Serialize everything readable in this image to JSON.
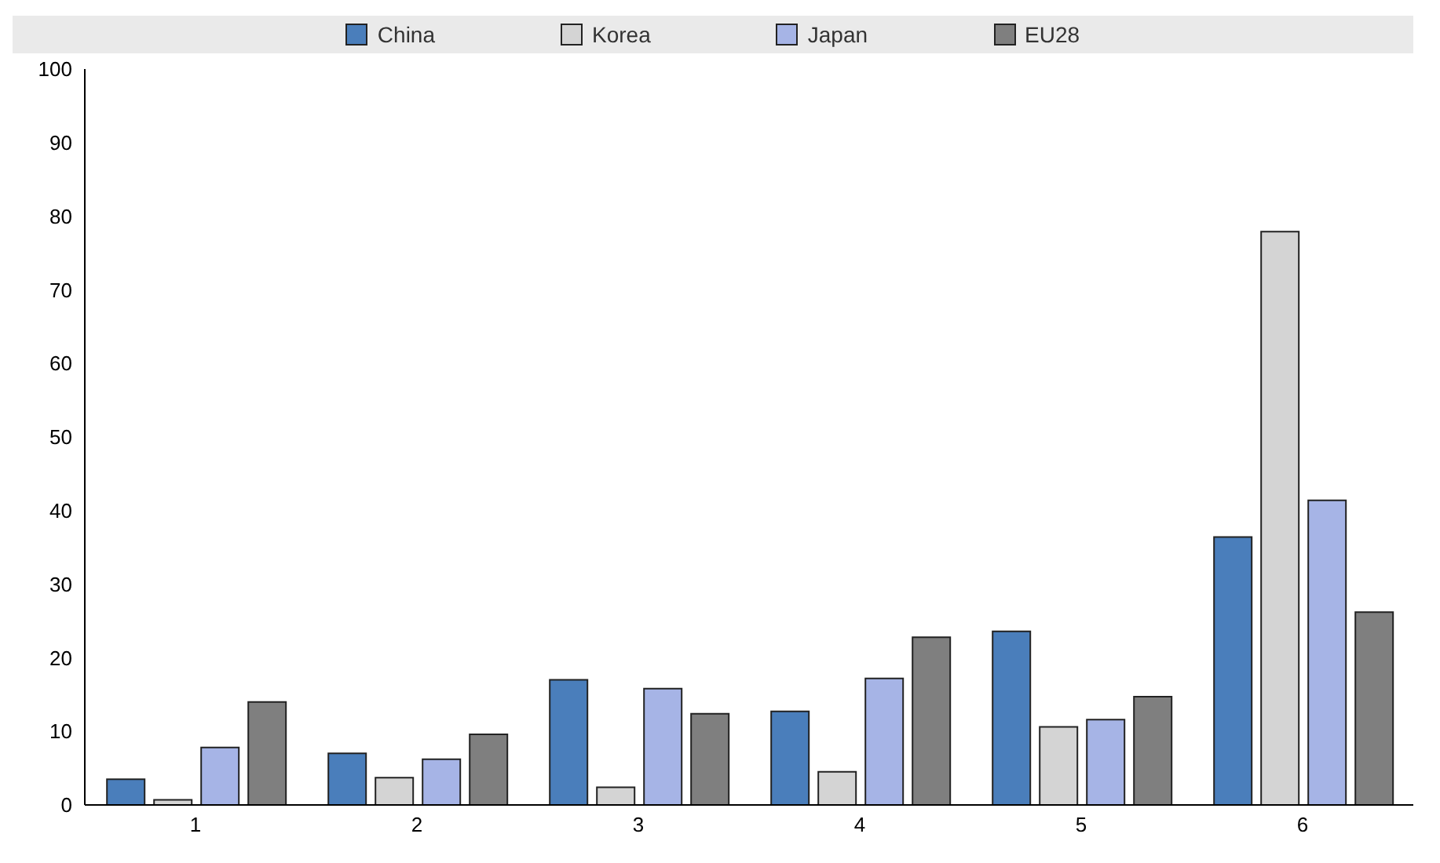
{
  "chart_data": {
    "type": "bar",
    "categories": [
      "1",
      "2",
      "3",
      "4",
      "5",
      "6"
    ],
    "series": [
      {
        "name": "China",
        "color": "#4a7ebb",
        "values": [
          3.5,
          7,
          17,
          12.7,
          23.6,
          36.4
        ]
      },
      {
        "name": "Korea",
        "color": "#d4d4d4",
        "values": [
          0.7,
          3.7,
          2.4,
          4.5,
          10.6,
          77.9
        ]
      },
      {
        "name": "Japan",
        "color": "#a6b4e6",
        "values": [
          7.8,
          6.2,
          15.8,
          17.2,
          11.6,
          41.4
        ]
      },
      {
        "name": "EU28",
        "color": "#7f7f7f",
        "values": [
          14,
          9.6,
          12.4,
          22.8,
          14.7,
          26.2
        ]
      }
    ],
    "ylim": [
      0,
      100
    ],
    "yticks": [
      0,
      10,
      20,
      30,
      40,
      50,
      60,
      70,
      80,
      90,
      100
    ],
    "grid": false,
    "legend": "top"
  }
}
